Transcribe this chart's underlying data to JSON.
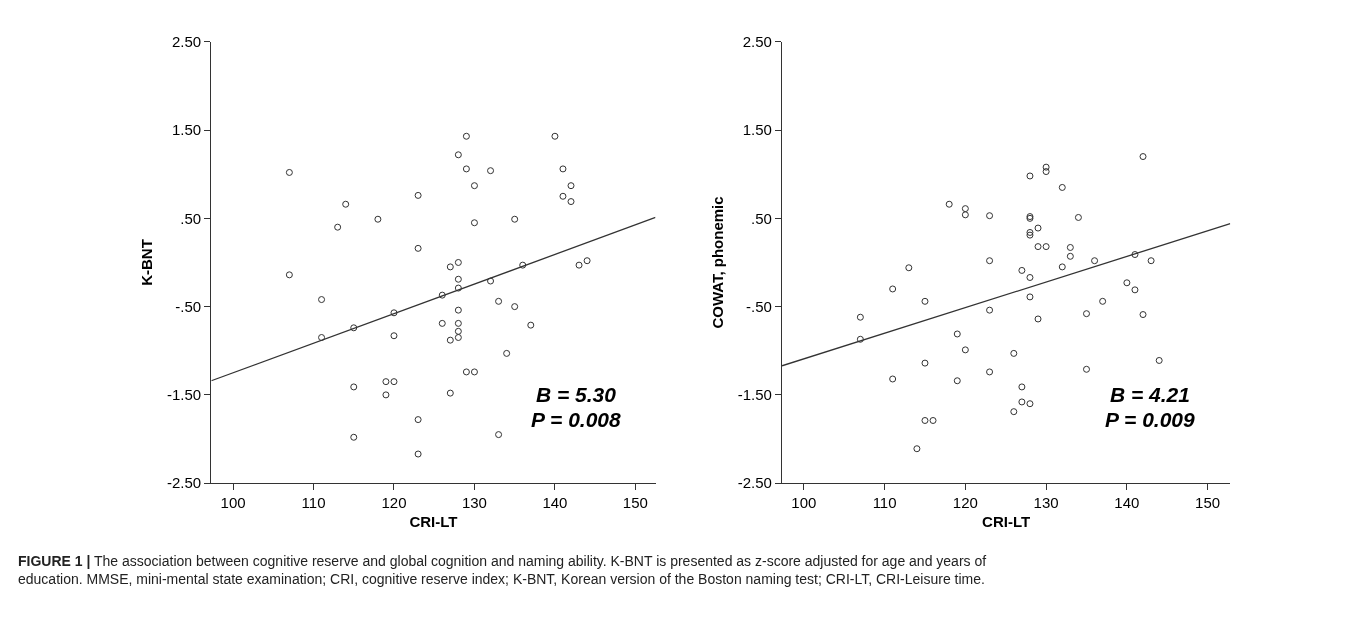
{
  "chart_data": [
    {
      "type": "scatter",
      "xlabel": "CRI-LT",
      "ylabel": "K-BNT",
      "xlim": [
        97.3,
        152.5
      ],
      "ylim": [
        -2.5,
        2.5
      ],
      "xticks": [
        100,
        110,
        120,
        130,
        140,
        150
      ],
      "yticks": [
        {
          "value": 2.5,
          "label": "2.50"
        },
        {
          "value": 1.5,
          "label": "1.50"
        },
        {
          "value": 0.5,
          "label": ".50"
        },
        {
          "value": -0.5,
          "label": "-.50"
        },
        {
          "value": -1.5,
          "label": "-1.50"
        },
        {
          "value": -2.5,
          "label": "-2.50"
        }
      ],
      "grid": false,
      "marker": "circle",
      "annotations": [
        "B = 5.30",
        "P = 0.008",
        "FIGURE 1 |",
        "The association between cognitive reserve and global cognition and naming ability. K-BNT is presented as z-score adjusted for age and years of education. MMSE, mini-mental state examination; CRI, cognitive reserve index; K-BNT, Korean version of the Boston naming test; CRI-LT, CRI-Leisure time."
      ],
      "series": [
        {
          "color": "#333333",
          "x": [
            107,
            107,
            111,
            111,
            113,
            114,
            115,
            115,
            115,
            118,
            119,
            119,
            120,
            120,
            120,
            123,
            123,
            123,
            123,
            126,
            126,
            127,
            127,
            127,
            128,
            128,
            128,
            128,
            128,
            128,
            128,
            128,
            129,
            129,
            129,
            130,
            130,
            130,
            132,
            132,
            133,
            133,
            134,
            135,
            135,
            136,
            137,
            140,
            141,
            141,
            142,
            142,
            143,
            144
          ],
          "values": [
            1.02,
            -0.14,
            -0.42,
            -0.85,
            0.4,
            0.66,
            -0.74,
            -1.41,
            -1.98,
            0.49,
            -1.35,
            -1.5,
            -0.57,
            -0.83,
            -1.35,
            0.76,
            0.16,
            -1.78,
            -2.17,
            -0.37,
            -0.69,
            -0.05,
            -0.88,
            -1.48,
            1.22,
            0.0,
            -0.19,
            -0.29,
            -0.54,
            -0.69,
            -0.78,
            -0.85,
            1.43,
            1.06,
            -1.24,
            0.87,
            0.45,
            -1.24,
            1.04,
            -0.21,
            -0.44,
            -1.95,
            -1.03,
            0.49,
            -0.5,
            -0.03,
            -0.71,
            1.43,
            1.06,
            0.75,
            0.87,
            0.69,
            -0.03,
            0.02
          ]
        },
        {
          "type": "line",
          "color": "#333333",
          "x": [
            97.3,
            152.5
          ],
          "values": [
            -1.34,
            0.51
          ],
          "marker": "none"
        }
      ]
    },
    {
      "type": "scatter",
      "xlabel": "CRI-LT",
      "ylabel": "COWAT, phonemic",
      "xlim": [
        97.3,
        152.8
      ],
      "ylim": [
        -2.5,
        2.5
      ],
      "xticks": [
        100,
        110,
        120,
        130,
        140,
        150
      ],
      "yticks": [
        {
          "value": 2.5,
          "label": "2.50"
        },
        {
          "value": 1.5,
          "label": "1.50"
        },
        {
          "value": 0.5,
          "label": ".50"
        },
        {
          "value": -0.5,
          "label": "-.50"
        },
        {
          "value": -1.5,
          "label": "-1.50"
        },
        {
          "value": -2.5,
          "label": "-2.50"
        }
      ],
      "grid": false,
      "marker": "circle",
      "annotations": [
        "B = 4.21",
        "P = 0.009"
      ],
      "series": [
        {
          "color": "#333333",
          "x": [
            107,
            107,
            111,
            111,
            113,
            114,
            115,
            115,
            115,
            116,
            118,
            119,
            119,
            120,
            120,
            120,
            123,
            123,
            123,
            123,
            126,
            126,
            127,
            127,
            127,
            128,
            128,
            128,
            128,
            128,
            128,
            128,
            128,
            129,
            129,
            129,
            130,
            130,
            130,
            132,
            132,
            133,
            133,
            134,
            135,
            135,
            136,
            137,
            140,
            141,
            141,
            142,
            142,
            143,
            144
          ],
          "values": [
            -0.62,
            -0.87,
            -0.3,
            -1.32,
            -0.06,
            -2.11,
            -0.44,
            -1.14,
            -1.79,
            -1.79,
            0.66,
            -0.81,
            -1.34,
            0.61,
            0.54,
            -0.99,
            0.53,
            0.02,
            -0.54,
            -1.24,
            -1.03,
            -1.69,
            -0.09,
            -1.41,
            -1.58,
            0.98,
            0.52,
            0.5,
            0.34,
            0.31,
            -0.17,
            -0.39,
            -1.6,
            0.39,
            0.18,
            -0.64,
            1.08,
            1.03,
            0.18,
            0.85,
            -0.05,
            0.17,
            0.07,
            0.51,
            -0.58,
            -1.21,
            0.02,
            -0.44,
            -0.23,
            0.09,
            -0.31,
            1.2,
            -0.59,
            0.02,
            -1.11
          ]
        },
        {
          "type": "line",
          "color": "#333333",
          "x": [
            97.3,
            152.8
          ],
          "values": [
            -1.17,
            0.44
          ],
          "marker": "none"
        }
      ]
    }
  ]
}
